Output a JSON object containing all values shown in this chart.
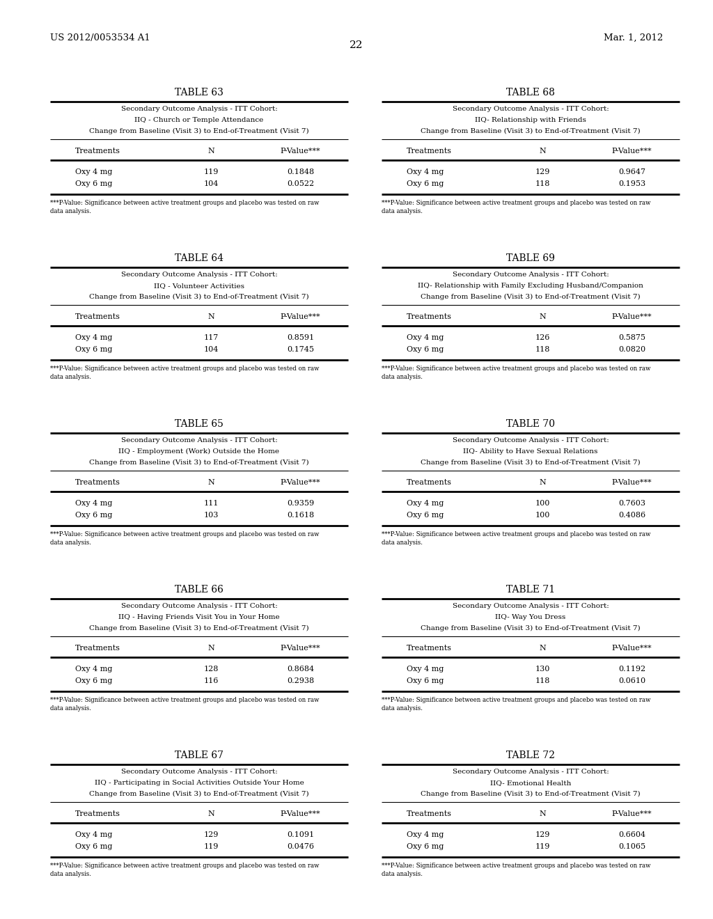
{
  "page_number": "22",
  "patent_left": "US 2012/0053534 A1",
  "patent_right": "Mar. 1, 2012",
  "footnote_line1": "***P-Value: Significance between active treatment groups and placebo was tested on raw",
  "footnote_line2": "data analysis.",
  "tables": [
    {
      "title": "TABLE 63",
      "subtitle1": "Secondary Outcome Analysis - ITT Cohort:",
      "subtitle2": "IIQ - Church or Temple Attendance",
      "subtitle3": "Change from Baseline (Visit 3) to End-of-Treatment (Visit 7)",
      "col1": "Treatments",
      "col2": "N",
      "col3": "P-Value***",
      "rows": [
        [
          "Oxy 4 mg",
          "119",
          "0.1848"
        ],
        [
          "Oxy 6 mg",
          "104",
          "0.0522"
        ]
      ]
    },
    {
      "title": "TABLE 64",
      "subtitle1": "Secondary Outcome Analysis - ITT Cohort:",
      "subtitle2": "IIQ - Volunteer Activities",
      "subtitle3": "Change from Baseline (Visit 3) to End-of-Treatment (Visit 7)",
      "col1": "Treatments",
      "col2": "N",
      "col3": "P-Value***",
      "rows": [
        [
          "Oxy 4 mg",
          "117",
          "0.8591"
        ],
        [
          "Oxy 6 mg",
          "104",
          "0.1745"
        ]
      ]
    },
    {
      "title": "TABLE 65",
      "subtitle1": "Secondary Outcome Analysis - ITT Cohort:",
      "subtitle2": "IIQ - Employment (Work) Outside the Home",
      "subtitle3": "Change from Baseline (Visit 3) to End-of-Treatment (Visit 7)",
      "col1": "Treatments",
      "col2": "N",
      "col3": "P-Value***",
      "rows": [
        [
          "Oxy 4 mg",
          "111",
          "0.9359"
        ],
        [
          "Oxy 6 mg",
          "103",
          "0.1618"
        ]
      ]
    },
    {
      "title": "TABLE 66",
      "subtitle1": "Secondary Outcome Analysis - ITT Cohort:",
      "subtitle2": "IIQ - Having Friends Visit You in Your Home",
      "subtitle3": "Change from Baseline (Visit 3) to End-of-Treatment (Visit 7)",
      "col1": "Treatments",
      "col2": "N",
      "col3": "P-Value***",
      "rows": [
        [
          "Oxy 4 mg",
          "128",
          "0.8684"
        ],
        [
          "Oxy 6 mg",
          "116",
          "0.2938"
        ]
      ]
    },
    {
      "title": "TABLE 67",
      "subtitle1": "Secondary Outcome Analysis - ITT Cohort:",
      "subtitle2": "IIQ - Participating in Social Activities Outside Your Home",
      "subtitle3": "Change from Baseline (Visit 3) to End-of-Treatment (Visit 7)",
      "col1": "Treatments",
      "col2": "N",
      "col3": "P-Value***",
      "rows": [
        [
          "Oxy 4 mg",
          "129",
          "0.1091"
        ],
        [
          "Oxy 6 mg",
          "119",
          "0.0476"
        ]
      ]
    },
    {
      "title": "TABLE 68",
      "subtitle1": "Secondary Outcome Analysis - ITT Cohort:",
      "subtitle2": "IIQ- Relationship with Friends",
      "subtitle3": "Change from Baseline (Visit 3) to End-of-Treatment (Visit 7)",
      "col1": "Treatments",
      "col2": "N",
      "col3": "P-Value***",
      "rows": [
        [
          "Oxy 4 mg",
          "129",
          "0.9647"
        ],
        [
          "Oxy 6 mg",
          "118",
          "0.1953"
        ]
      ]
    },
    {
      "title": "TABLE 69",
      "subtitle1": "Secondary Outcome Analysis - ITT Cohort:",
      "subtitle2": "IIQ- Relationship with Family Excluding Husband/Companion",
      "subtitle3": "Change from Baseline (Visit 3) to End-of-Treatment (Visit 7)",
      "col1": "Treatments",
      "col2": "N",
      "col3": "P-Value***",
      "rows": [
        [
          "Oxy 4 mg",
          "126",
          "0.5875"
        ],
        [
          "Oxy 6 mg",
          "118",
          "0.0820"
        ]
      ]
    },
    {
      "title": "TABLE 70",
      "subtitle1": "Secondary Outcome Analysis - ITT Cohort:",
      "subtitle2": "IIQ- Ability to Have Sexual Relations",
      "subtitle3": "Change from Baseline (Visit 3) to End-of-Treatment (Visit 7)",
      "col1": "Treatments",
      "col2": "N",
      "col3": "P-Value***",
      "rows": [
        [
          "Oxy 4 mg",
          "100",
          "0.7603"
        ],
        [
          "Oxy 6 mg",
          "100",
          "0.4086"
        ]
      ]
    },
    {
      "title": "TABLE 71",
      "subtitle1": "Secondary Outcome Analysis - ITT Cohort:",
      "subtitle2": "IIQ- Way You Dress",
      "subtitle3": "Change from Baseline (Visit 3) to End-of-Treatment (Visit 7)",
      "col1": "Treatments",
      "col2": "N",
      "col3": "P-Value***",
      "rows": [
        [
          "Oxy 4 mg",
          "130",
          "0.1192"
        ],
        [
          "Oxy 6 mg",
          "118",
          "0.0610"
        ]
      ]
    },
    {
      "title": "TABLE 72",
      "subtitle1": "Secondary Outcome Analysis - ITT Cohort:",
      "subtitle2": "IIQ- Emotional Health",
      "subtitle3": "Change from Baseline (Visit 3) to End-of-Treatment (Visit 7)",
      "col1": "Treatments",
      "col2": "N",
      "col3": "P-Value***",
      "rows": [
        [
          "Oxy 4 mg",
          "129",
          "0.6604"
        ],
        [
          "Oxy 6 mg",
          "119",
          "0.1065"
        ]
      ]
    }
  ]
}
